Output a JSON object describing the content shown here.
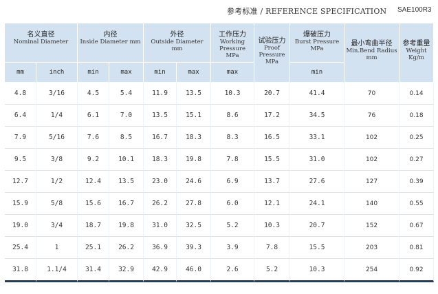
{
  "header": {
    "title_zh": "参考标准",
    "title_sep": "/",
    "title_en": "REFERENCE  SPECIFICATION",
    "product_code": "SAE100R3"
  },
  "table": {
    "group_headers": [
      {
        "zh": "名义直径",
        "en": "Nominal Diameter"
      },
      {
        "zh": "内径",
        "en": "Inside  Diameter mm"
      },
      {
        "zh": "外径",
        "en": "Outside Diameter mm"
      },
      {
        "zh": "工作压力",
        "en": "Working Pressure MPa"
      },
      {
        "zh": "试验压力",
        "en": "Proof Pressure MPa"
      },
      {
        "zh": "爆破压力",
        "en": "Burst Pressure MPa"
      },
      {
        "zh": "最小弯曲半径",
        "en": "Min.Bend Radius mm"
      },
      {
        "zh": "参考重量",
        "en": "Weight Kg/m"
      }
    ],
    "sub_headers": [
      "mm",
      "inch",
      "min",
      "max",
      "min",
      "max",
      "max",
      "",
      "min",
      "",
      ""
    ],
    "rows": [
      [
        "4.8",
        "3/16",
        "4.5",
        "5.4",
        "11.9",
        "13.5",
        "10.3",
        "20.7",
        "41.4",
        "70",
        "0.14"
      ],
      [
        "6.4",
        "1/4",
        "6.1",
        "7.0",
        "13.5",
        "15.1",
        "8.6",
        "17.2",
        "34.5",
        "76",
        "0.18"
      ],
      [
        "7.9",
        "5/16",
        "7.6",
        "8.5",
        "16.7",
        "18.3",
        "8.3",
        "16.5",
        "33.1",
        "102",
        "0.25"
      ],
      [
        "9.5",
        "3/8",
        "9.2",
        "10.1",
        "18.3",
        "19.8",
        "7.8",
        "15.5",
        "31.0",
        "102",
        "0.27"
      ],
      [
        "12.7",
        "1/2",
        "12.4",
        "13.5",
        "23.0",
        "24.6",
        "6.9",
        "13.7",
        "27.6",
        "127",
        "0.39"
      ],
      [
        "15.9",
        "5/8",
        "15.6",
        "16.7",
        "26.2",
        "27.8",
        "6.0",
        "12.1",
        "24.1",
        "140",
        "0.55"
      ],
      [
        "19.0",
        "3/4",
        "18.7",
        "19.8",
        "31.0",
        "32.5",
        "5.2",
        "10.3",
        "20.7",
        "152",
        "0.67"
      ],
      [
        "25.4",
        "1",
        "25.1",
        "26.2",
        "36.9",
        "39.3",
        "3.9",
        "7.8",
        "15.5",
        "203",
        "0.81"
      ],
      [
        "31.8",
        "1.1/4",
        "31.4",
        "32.9",
        "42.9",
        "46.0",
        "2.6",
        "5.2",
        "10.3",
        "254",
        "0.92"
      ]
    ]
  }
}
